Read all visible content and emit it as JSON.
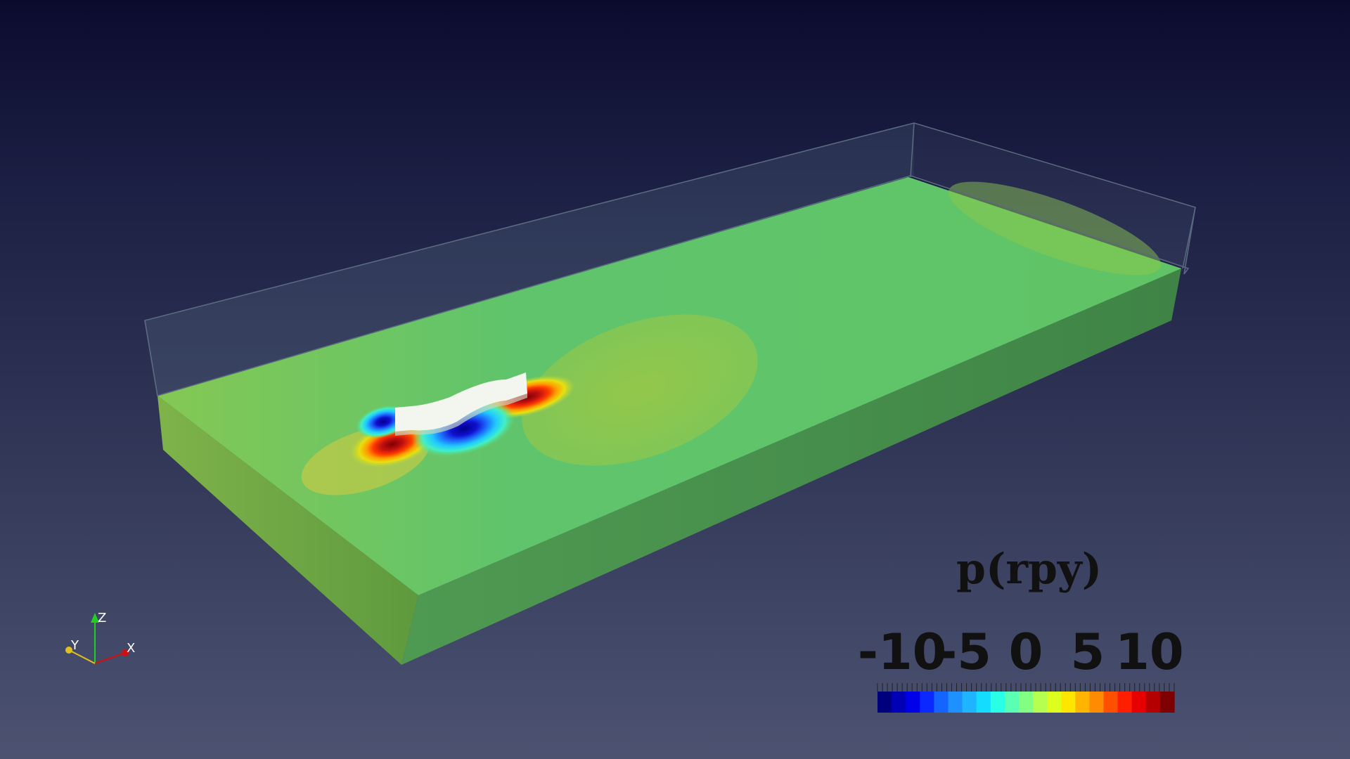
{
  "scalar_bar": {
    "title": "p(rpy)",
    "tick_labels": [
      "-10",
      "-5",
      "0",
      "5",
      "10"
    ],
    "tick_values": [
      -10,
      -5,
      0,
      5,
      10
    ],
    "range": [
      -12,
      12
    ],
    "colormap": [
      "#00007f",
      "#0000b4",
      "#0000e8",
      "#0a28ff",
      "#1464ff",
      "#1e90ff",
      "#1eb4ff",
      "#14dcff",
      "#28ffe6",
      "#5affb4",
      "#82ff82",
      "#b4ff50",
      "#dcff1e",
      "#ffe600",
      "#ffb400",
      "#ff8c00",
      "#ff5000",
      "#ff1e00",
      "#e60000",
      "#b40000",
      "#7f0000"
    ]
  },
  "orientation_axes": {
    "x_label": "X",
    "y_label": "Y",
    "z_label": "Z",
    "x_color": "#d01010",
    "y_color": "#e0c020",
    "z_color": "#20d020"
  },
  "colors": {
    "fluid_domain": "#5ec46a",
    "fluid_edge": "#9ad64a",
    "obstacle": "#f2f6ee"
  }
}
